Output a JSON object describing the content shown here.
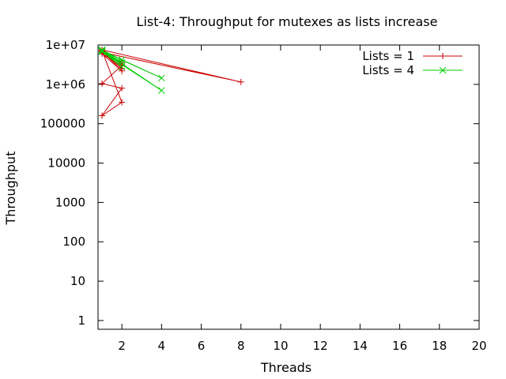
{
  "chart_data": {
    "type": "line",
    "title": "List-4: Throughput for mutexes as lists increase",
    "xlabel": "Threads",
    "ylabel": "Throughput",
    "xlim": [
      0.8,
      20
    ],
    "ylim": [
      0.6,
      10000000
    ],
    "y_scale": "log",
    "x_ticks": [
      2,
      4,
      6,
      8,
      10,
      12,
      14,
      16,
      18,
      20
    ],
    "x_tick_labels": [
      "2",
      "4",
      "6",
      "8",
      "10",
      "12",
      "14",
      "16",
      "18",
      "20"
    ],
    "y_ticks": [
      1,
      10,
      100,
      1000,
      10000,
      100000,
      1000000,
      10000000
    ],
    "y_tick_labels": [
      "1",
      "10",
      "100",
      "1000",
      "10000",
      "100000",
      "1e+06",
      "1e+07"
    ],
    "grid": false,
    "legend_position": "top-right",
    "series": [
      {
        "name": "Lists = 1",
        "color": "#cc0000",
        "marker": "plus",
        "points": [
          [
            1,
            7000000
          ],
          [
            2,
            2500000
          ],
          [
            1,
            7500000
          ],
          [
            8,
            1150000
          ],
          [
            1,
            6500000
          ],
          [
            2,
            3500000
          ],
          [
            1,
            7000000
          ],
          [
            2,
            2200000
          ],
          [
            1,
            6000000
          ],
          [
            2,
            3000000
          ],
          [
            1,
            1050000
          ],
          [
            2,
            800000
          ],
          [
            1,
            160000
          ],
          [
            2,
            350000
          ],
          [
            1,
            7200000
          ]
        ]
      },
      {
        "name": "Lists = 4",
        "color": "#00cc00",
        "marker": "cross",
        "points": [
          [
            1,
            7500000
          ],
          [
            2,
            4200000
          ],
          [
            1,
            7200000
          ],
          [
            4,
            1450000
          ],
          [
            1,
            7000000
          ],
          [
            2,
            2800000
          ],
          [
            1,
            6800000
          ],
          [
            4,
            700000
          ],
          [
            1,
            7300000
          ],
          [
            2,
            3600000
          ]
        ]
      }
    ]
  }
}
